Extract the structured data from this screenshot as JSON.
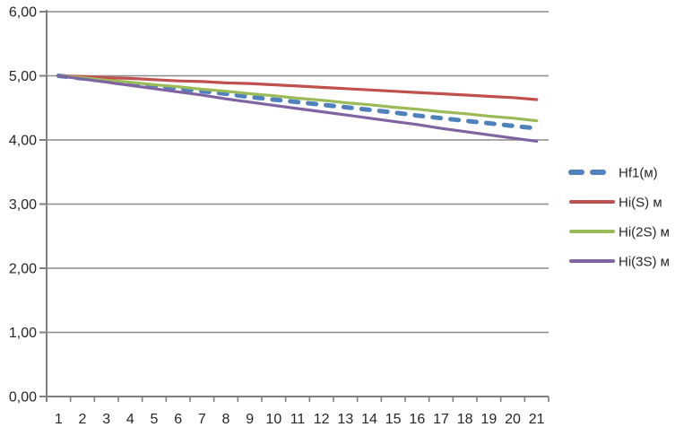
{
  "chart_data": {
    "type": "line",
    "title": "",
    "xlabel": "",
    "ylabel": "",
    "x": [
      1,
      2,
      3,
      4,
      5,
      6,
      7,
      8,
      9,
      10,
      11,
      12,
      13,
      14,
      15,
      16,
      17,
      18,
      19,
      20,
      21
    ],
    "ylim": [
      0,
      6
    ],
    "yticks": [
      0,
      1,
      2,
      3,
      4,
      5,
      6
    ],
    "ytick_labels": [
      "0,00",
      "1,00",
      "2,00",
      "3,00",
      "4,00",
      "5,00",
      "6,00"
    ],
    "grid": true,
    "legend_position": "right",
    "series": [
      {
        "name": "Hf1(м)",
        "color": "#4F81BD",
        "style": "dashed",
        "values": [
          5.0,
          4.96,
          4.92,
          4.88,
          4.84,
          4.8,
          4.76,
          4.72,
          4.67,
          4.63,
          4.59,
          4.55,
          4.51,
          4.47,
          4.43,
          4.38,
          4.34,
          4.3,
          4.26,
          4.22,
          4.18
        ]
      },
      {
        "name": "Hi(S) м",
        "color": "#C0504D",
        "style": "solid",
        "values": [
          5.0,
          4.99,
          4.97,
          4.96,
          4.94,
          4.92,
          4.91,
          4.89,
          4.88,
          4.86,
          4.84,
          4.82,
          4.8,
          4.78,
          4.76,
          4.74,
          4.72,
          4.7,
          4.68,
          4.66,
          4.63
        ]
      },
      {
        "name": "Hi(2S) м",
        "color": "#9BBB59",
        "style": "solid",
        "values": [
          5.0,
          4.97,
          4.93,
          4.9,
          4.86,
          4.83,
          4.79,
          4.76,
          4.72,
          4.69,
          4.65,
          4.62,
          4.58,
          4.55,
          4.51,
          4.48,
          4.44,
          4.41,
          4.37,
          4.34,
          4.3
        ]
      },
      {
        "name": "Hi(3S) м",
        "color": "#8064A2",
        "style": "solid",
        "values": [
          5.0,
          4.95,
          4.9,
          4.85,
          4.8,
          4.75,
          4.7,
          4.64,
          4.59,
          4.54,
          4.49,
          4.44,
          4.39,
          4.34,
          4.29,
          4.24,
          4.18,
          4.13,
          4.08,
          4.03,
          3.98
        ]
      }
    ],
    "colors": {
      "axis": "#808080",
      "grid": "#8C8C8C",
      "text": "#262626",
      "background": "#FFFFFF"
    }
  }
}
